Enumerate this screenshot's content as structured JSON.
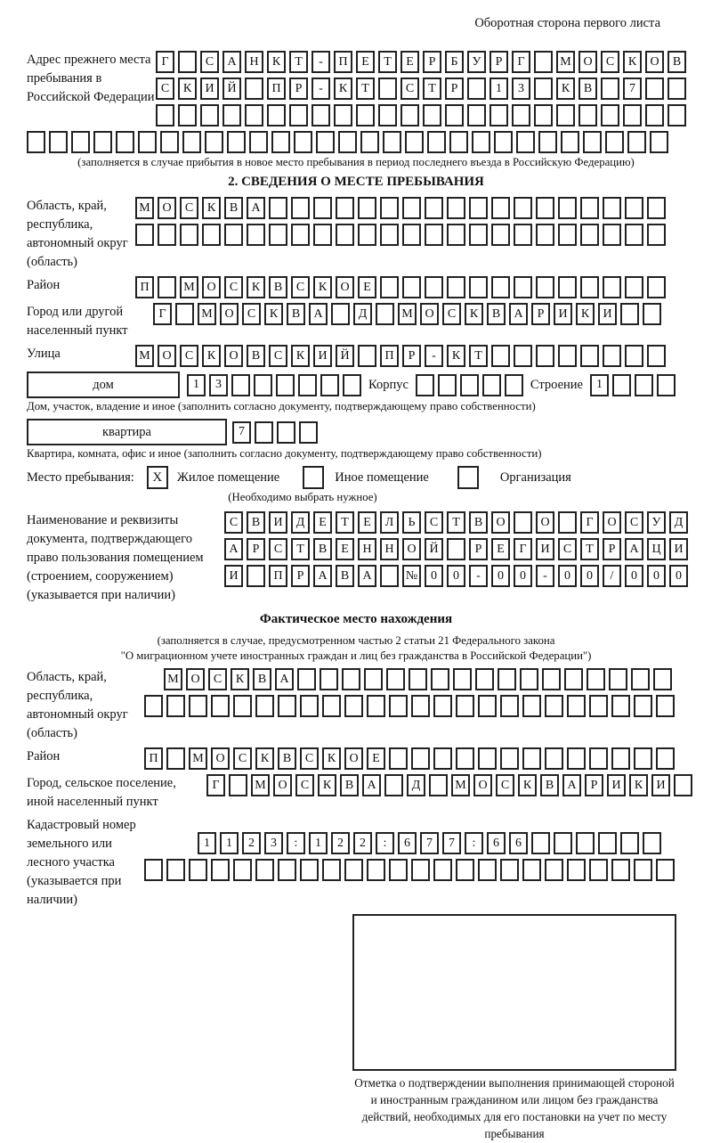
{
  "header": {
    "title": "Оборотная сторона первого листа"
  },
  "prev_address": {
    "label": "Адрес прежнего места пребывания в Российской Федерации",
    "row1": "Г САНКТ-ПЕТЕРБУРГ МОСКОВ",
    "row2": "СКИЙ ПР-КТ СТР 13 КВ 7",
    "row3": "",
    "row4": "",
    "note": "(заполняется в случае прибытия в новое место пребывания в период последнего въезда в Российскую Федерацию)"
  },
  "section2": {
    "title": "2. СВЕДЕНИЯ О МЕСТЕ ПРЕБЫВАНИЯ",
    "region": {
      "label": "Область, край, республика, автономный округ (область)",
      "row1": "МОСКВА",
      "row2": ""
    },
    "district": {
      "label": "Район",
      "value": "П МОСКВСКОЕ"
    },
    "city": {
      "label": "Город или другой населенный пункт",
      "value": "Г МОСКВА Д МОСКВАРИКИ"
    },
    "street": {
      "label": "Улица",
      "value": "МОСКОВСКИЙ ПР-КТ"
    },
    "house": {
      "label": "дом",
      "value": "13",
      "korpus_label": "Корпус",
      "korpus_value": "",
      "stroenie_label": "Строение",
      "stroenie_value": "1",
      "note": "Дом, участок, владение и иное (заполнить согласно документу, подтверждающему право собственности)"
    },
    "apartment": {
      "label": "квартира",
      "value": "7",
      "note": "Квартира, комната, офис и иное (заполнить согласно документу, подтверждающему право собственности)"
    },
    "stay_type": {
      "label": "Место пребывания:",
      "options": [
        {
          "label": "Жилое помещение",
          "checked": "X"
        },
        {
          "label": "Иное помещение",
          "checked": ""
        },
        {
          "label": "Организация",
          "checked": ""
        }
      ],
      "note": "(Необходимо выбрать нужное)"
    },
    "document": {
      "label": "Наименование и реквизиты документа, подтверждающего право пользования помещением (строением, сооружением) (указывается при наличии)",
      "row1": "СВИДЕТЕЛЬСТВО О ГОСУД",
      "row2": "АРСТВЕННОЙ РЕГИСТРАЦИ",
      "row3": "И ПРАВА №00-00-00/000"
    }
  },
  "actual_location": {
    "title": "Фактическое место нахождения",
    "note1": "(заполняется в случае, предусмотренном частью 2 статьи 21 Федерального закона",
    "note2": "\"О миграционном учете иностранных граждан и лиц без гражданства в Российской Федерации\")",
    "region": {
      "label": "Область, край, республика, автономный округ (область)",
      "row1": "МОСКВА",
      "row2": ""
    },
    "district": {
      "label": "Район",
      "value": "П МОСКВСКОЕ"
    },
    "city": {
      "label": "Город, сельское поселение, иной населенный пункт",
      "value": "Г МОСКВА Д МОСКВАРИКИ"
    },
    "cadastral": {
      "label": "Кадастровый номер земельного или лесного участка (указывается при наличии)",
      "row1": "1123:122:677:66",
      "row2": ""
    }
  },
  "stamp": {
    "caption": "Отметка о подтверждении выполнения принимающей стороной и иностранным гражданином или лицом без гражданства действий, необходимых для его постановки на учет по месту пребывания"
  }
}
